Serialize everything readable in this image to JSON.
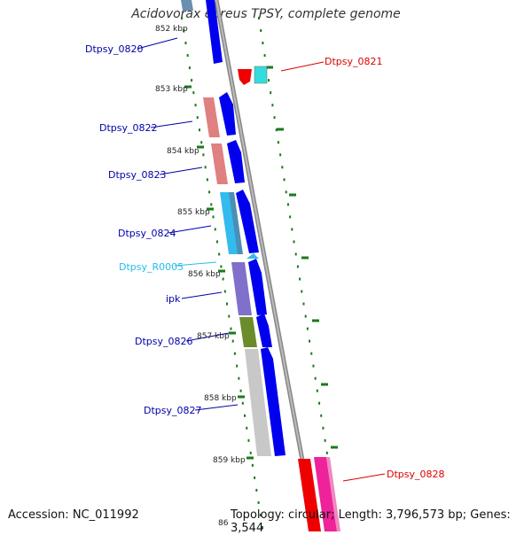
{
  "title": "Acidovorax ebreus TPSY, complete genome",
  "accession": "Accession: NC_011992",
  "stats": "Topology: circular; Length: 3,796,573 bp; Genes: 3,544",
  "tick_labels": [
    "852 kbp",
    "853 kbp",
    "854 kbp",
    "855 kbp",
    "856 kbp",
    "857 kbp",
    "858 kbp",
    "859 kbp",
    "86"
  ],
  "genes_left": [
    "Dtpsy_0820",
    "Dtpsy_0822",
    "Dtpsy_0823",
    "Dtpsy_0824",
    "Dtpsy_R0005",
    "ipk",
    "Dtpsy_0826",
    "Dtpsy_0827"
  ],
  "genes_right": [
    "Dtpsy_0821",
    "Dtpsy_0828"
  ],
  "colors": {
    "backbone": "#909090",
    "cds_strand": "#0000ee",
    "tick": "#1a7a1a",
    "label_blue": "#0000aa",
    "label_red": "#dd0000",
    "label_cyan": "#22bbee"
  }
}
